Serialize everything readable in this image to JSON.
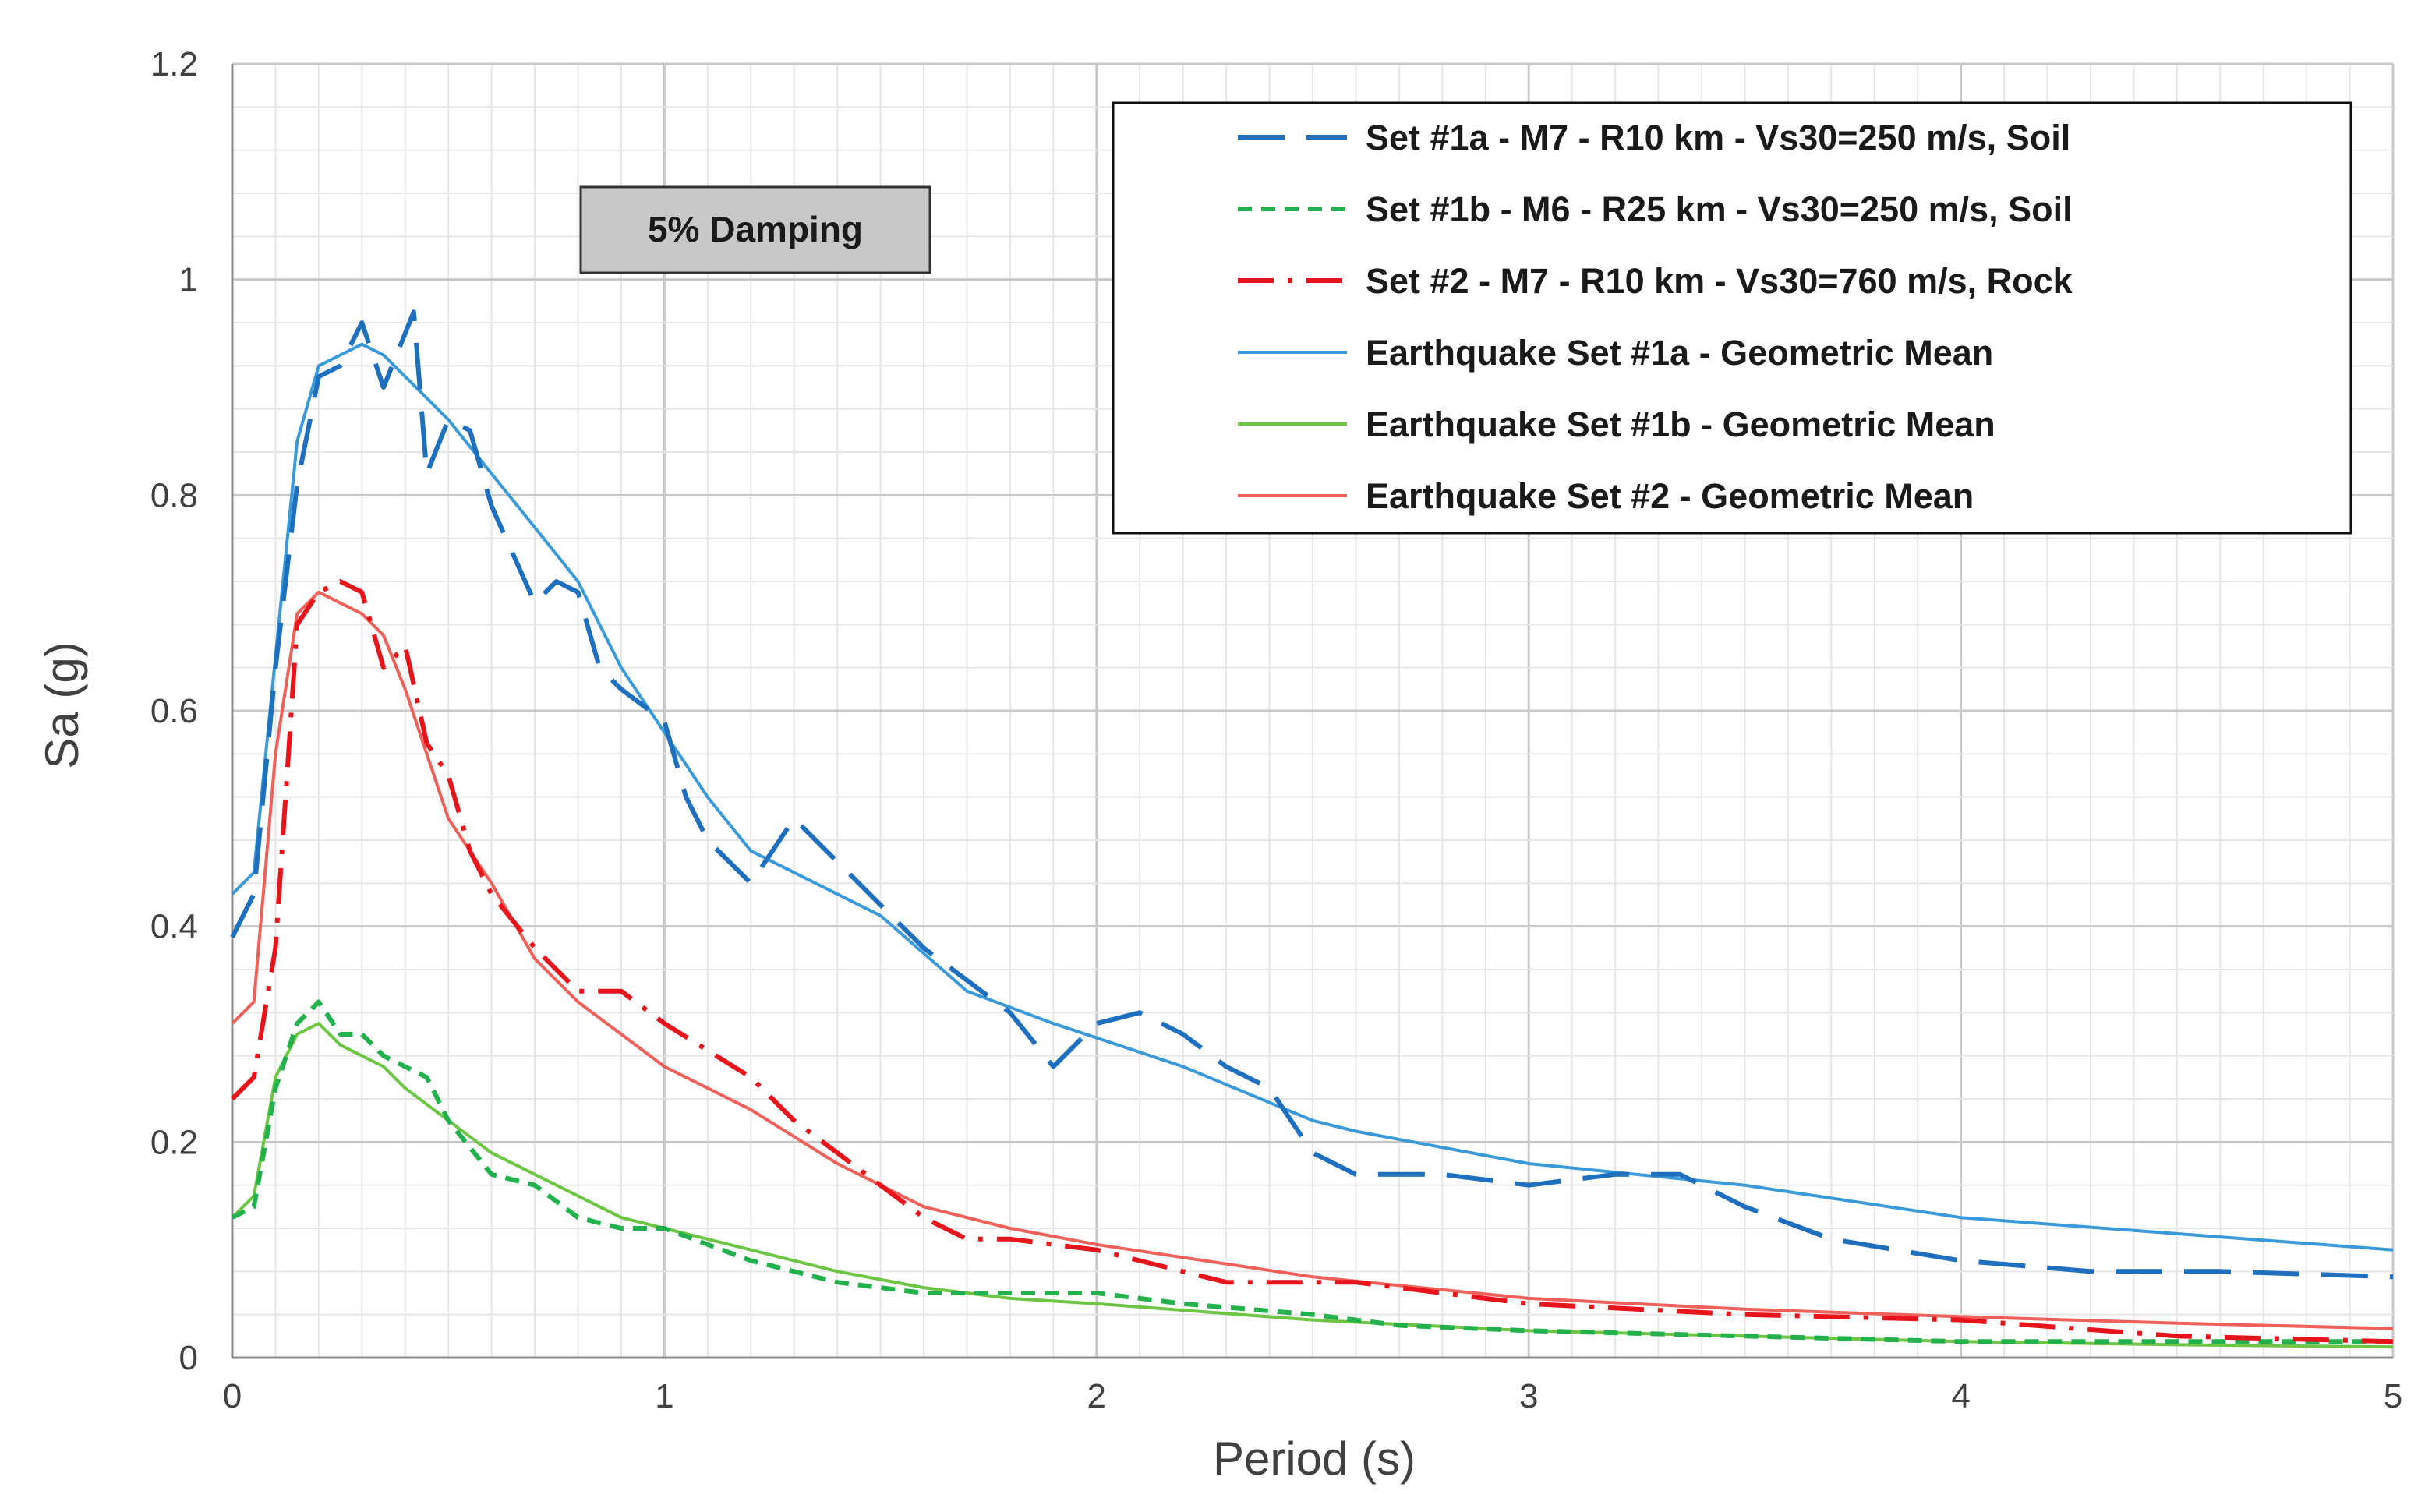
{
  "chart_data": {
    "type": "line",
    "title": "",
    "xlabel": "Period (s)",
    "ylabel": "Sa  (g)",
    "xlim": [
      0,
      5
    ],
    "ylim": [
      0,
      1.2
    ],
    "x_ticks": [
      "0",
      "1",
      "2",
      "3",
      "4",
      "5"
    ],
    "y_ticks": [
      "0",
      "0.2",
      "0.4",
      "0.6",
      "0.8",
      "1",
      "1.2"
    ],
    "grid": true,
    "legend_position": "top-right",
    "annotation": "5% Damping",
    "series": [
      {
        "name": "Set #1a - M7 - R10 km - Vs30=250 m/s, Soil",
        "color": "#1f6fbf",
        "style": "long-dash",
        "x": [
          0,
          0.05,
          0.1,
          0.15,
          0.2,
          0.25,
          0.3,
          0.35,
          0.4,
          0.42,
          0.45,
          0.5,
          0.55,
          0.6,
          0.7,
          0.75,
          0.8,
          0.85,
          0.9,
          1.0,
          1.05,
          1.1,
          1.2,
          1.3,
          1.4,
          1.5,
          1.6,
          1.7,
          1.8,
          1.9,
          2.0,
          2.1,
          2.2,
          2.3,
          2.4,
          2.5,
          2.6,
          2.8,
          3.0,
          3.2,
          3.35,
          3.5,
          3.7,
          4.0,
          4.3,
          4.6,
          5.0
        ],
        "values": [
          0.39,
          0.43,
          0.64,
          0.81,
          0.91,
          0.92,
          0.96,
          0.9,
          0.95,
          0.97,
          0.82,
          0.87,
          0.86,
          0.79,
          0.7,
          0.72,
          0.71,
          0.64,
          0.62,
          0.59,
          0.52,
          0.48,
          0.44,
          0.5,
          0.46,
          0.42,
          0.38,
          0.35,
          0.32,
          0.27,
          0.31,
          0.32,
          0.3,
          0.27,
          0.25,
          0.19,
          0.17,
          0.17,
          0.16,
          0.17,
          0.17,
          0.14,
          0.11,
          0.09,
          0.08,
          0.08,
          0.075
        ]
      },
      {
        "name": "Set #1b - M6 - R25 km - Vs30=250 m/s, Soil",
        "color": "#22b14c",
        "style": "short-dash",
        "x": [
          0,
          0.05,
          0.1,
          0.15,
          0.2,
          0.25,
          0.3,
          0.35,
          0.4,
          0.45,
          0.5,
          0.6,
          0.7,
          0.8,
          0.9,
          1.0,
          1.2,
          1.4,
          1.6,
          1.8,
          2.0,
          2.2,
          2.5,
          2.7,
          3.0,
          3.5,
          4.0,
          4.5,
          5.0
        ],
        "values": [
          0.13,
          0.14,
          0.25,
          0.31,
          0.33,
          0.3,
          0.3,
          0.28,
          0.27,
          0.26,
          0.22,
          0.17,
          0.16,
          0.13,
          0.12,
          0.12,
          0.09,
          0.07,
          0.06,
          0.06,
          0.06,
          0.05,
          0.04,
          0.03,
          0.025,
          0.02,
          0.015,
          0.015,
          0.015
        ]
      },
      {
        "name": "Set #2 - M7 - R10 km - Vs30=760 m/s, Rock",
        "color": "#e8141b",
        "style": "dash-dot",
        "x": [
          0,
          0.05,
          0.1,
          0.15,
          0.2,
          0.25,
          0.3,
          0.35,
          0.4,
          0.45,
          0.5,
          0.55,
          0.6,
          0.7,
          0.8,
          0.9,
          1.0,
          1.2,
          1.3,
          1.4,
          1.5,
          1.6,
          1.7,
          1.8,
          2.0,
          2.3,
          2.6,
          3.0,
          3.5,
          4.0,
          4.5,
          5.0
        ],
        "values": [
          0.24,
          0.26,
          0.38,
          0.68,
          0.71,
          0.72,
          0.71,
          0.64,
          0.66,
          0.57,
          0.54,
          0.47,
          0.43,
          0.38,
          0.34,
          0.34,
          0.31,
          0.26,
          0.22,
          0.19,
          0.16,
          0.13,
          0.11,
          0.11,
          0.1,
          0.07,
          0.07,
          0.05,
          0.04,
          0.035,
          0.02,
          0.015
        ]
      },
      {
        "name": "Earthquake Set #1a - Geometric Mean",
        "color": "#3a9ad9",
        "style": "solid",
        "x": [
          0,
          0.05,
          0.1,
          0.15,
          0.2,
          0.25,
          0.3,
          0.35,
          0.4,
          0.5,
          0.6,
          0.7,
          0.8,
          0.9,
          1.0,
          1.1,
          1.2,
          1.3,
          1.5,
          1.7,
          1.9,
          2.2,
          2.5,
          2.6,
          3.0,
          3.5,
          4.0,
          4.5,
          5.0
        ],
        "values": [
          0.43,
          0.45,
          0.65,
          0.85,
          0.92,
          0.93,
          0.94,
          0.93,
          0.91,
          0.87,
          0.82,
          0.77,
          0.72,
          0.64,
          0.58,
          0.52,
          0.47,
          0.45,
          0.41,
          0.34,
          0.31,
          0.27,
          0.22,
          0.21,
          0.18,
          0.16,
          0.13,
          0.115,
          0.1
        ]
      },
      {
        "name": "Earthquake Set #1b - Geometric Mean",
        "color": "#6cc644",
        "style": "solid",
        "x": [
          0,
          0.05,
          0.1,
          0.15,
          0.2,
          0.25,
          0.3,
          0.35,
          0.4,
          0.5,
          0.6,
          0.7,
          0.8,
          0.9,
          1.0,
          1.2,
          1.4,
          1.6,
          1.8,
          2.0,
          2.5,
          3.0,
          3.5,
          4.0,
          4.5,
          5.0
        ],
        "values": [
          0.13,
          0.15,
          0.26,
          0.3,
          0.31,
          0.29,
          0.28,
          0.27,
          0.25,
          0.22,
          0.19,
          0.17,
          0.15,
          0.13,
          0.12,
          0.1,
          0.08,
          0.065,
          0.055,
          0.05,
          0.035,
          0.025,
          0.02,
          0.015,
          0.012,
          0.01
        ]
      },
      {
        "name": "Earthquake Set #2 - Geometric Mean",
        "color": "#f0605a",
        "style": "solid",
        "x": [
          0,
          0.05,
          0.1,
          0.15,
          0.2,
          0.25,
          0.3,
          0.35,
          0.4,
          0.5,
          0.6,
          0.7,
          0.8,
          0.9,
          1.0,
          1.2,
          1.4,
          1.6,
          1.8,
          2.0,
          2.5,
          3.0,
          3.5,
          4.0,
          4.5,
          5.0
        ],
        "values": [
          0.31,
          0.33,
          0.56,
          0.69,
          0.71,
          0.7,
          0.69,
          0.67,
          0.62,
          0.5,
          0.44,
          0.37,
          0.33,
          0.3,
          0.27,
          0.23,
          0.18,
          0.14,
          0.12,
          0.105,
          0.075,
          0.055,
          0.045,
          0.038,
          0.032,
          0.027
        ]
      }
    ]
  }
}
